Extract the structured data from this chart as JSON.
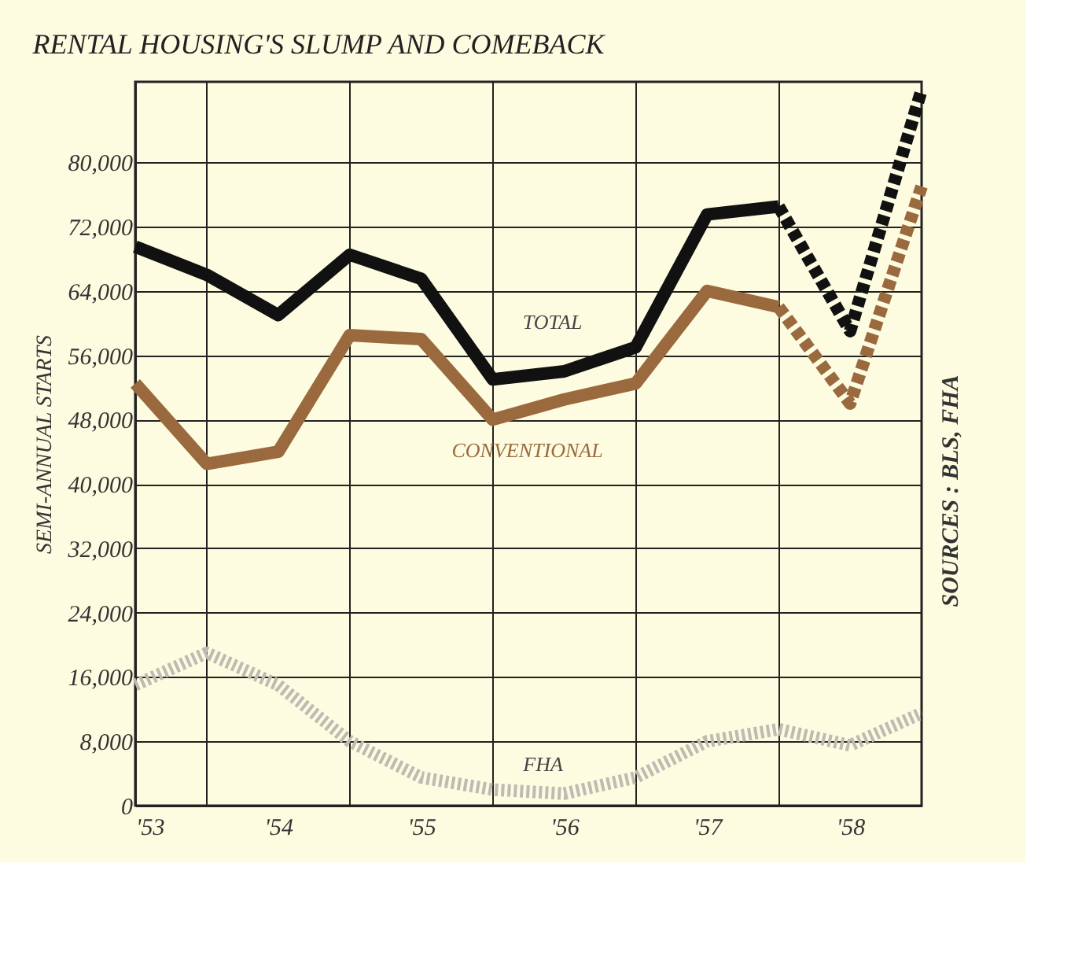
{
  "chart_data": {
    "type": "line",
    "title": "RENTAL HOUSING'S SLUMP AND COMEBACK",
    "ylabel": "SEMI-ANNUAL STARTS",
    "annotations": [
      "SOURCES : BLS, FHA"
    ],
    "x": [
      1953.0,
      1953.5,
      1954.0,
      1954.5,
      1955.0,
      1955.5,
      1956.0,
      1956.5,
      1957.0,
      1957.5,
      1958.0,
      1958.5
    ],
    "series": [
      {
        "name": "TOTAL",
        "color": "#111111",
        "line_style": "solid",
        "x": [
          1953.0,
          1953.5,
          1954.0,
          1954.5,
          1955.0,
          1955.5,
          1956.0,
          1956.5,
          1957.0,
          1957.5
        ],
        "values": [
          69500,
          66000,
          61000,
          68500,
          65500,
          53000,
          54000,
          57000,
          73500,
          74500
        ]
      },
      {
        "color": "#111111",
        "line_style": "dashed",
        "x": [
          1957.5,
          1958.0,
          1958.5
        ],
        "values": [
          74500,
          59000,
          89000
        ]
      },
      {
        "name": "CONVENTIONAL",
        "color": "#9a6a3e",
        "line_style": "solid",
        "x": [
          1953.0,
          1953.5,
          1954.0,
          1954.5,
          1955.0,
          1955.5,
          1956.0,
          1956.5,
          1957.0,
          1957.5
        ],
        "values": [
          52500,
          42500,
          44000,
          58500,
          58000,
          48000,
          50500,
          52500,
          64000,
          62000
        ]
      },
      {
        "color": "#9a6a3e",
        "line_style": "dashed",
        "x": [
          1957.5,
          1958.0,
          1958.5
        ],
        "values": [
          62000,
          50000,
          77000
        ]
      },
      {
        "name": "FHA",
        "color": "#bdbcb2",
        "line_style": "dotted",
        "values": [
          15000,
          19000,
          15000,
          8000,
          3500,
          2000,
          1500,
          3500,
          8000,
          9500,
          7500,
          11500
        ]
      }
    ],
    "xlim": [
      1953.0,
      1958.5
    ],
    "xticks": [
      {
        "value": 1953,
        "label": "'53"
      },
      {
        "value": 1954,
        "label": "'54"
      },
      {
        "value": 1955,
        "label": "'55"
      },
      {
        "value": 1956,
        "label": "'56"
      },
      {
        "value": 1957,
        "label": "'57"
      },
      {
        "value": 1958,
        "label": "'58"
      },
      {
        "value": 1953.5,
        "label": null
      },
      {
        "value": 1954.5,
        "label": null
      },
      {
        "value": 1955.5,
        "label": null
      },
      {
        "value": 1956.5,
        "label": null
      },
      {
        "value": 1957.5,
        "label": null
      }
    ],
    "ylim": [
      0,
      90000
    ],
    "yticks": [
      0,
      {
        "value": 8000,
        "label": "8,000"
      },
      {
        "value": 16000,
        "label": "16,000"
      },
      {
        "value": 24000,
        "label": "24,000"
      },
      {
        "value": 32000,
        "label": "32,000"
      },
      {
        "value": 40000,
        "label": "40,000"
      },
      {
        "value": 48000,
        "label": "48,000"
      },
      {
        "value": 56000,
        "label": "56,000"
      },
      {
        "value": 64000,
        "label": "64,000"
      },
      {
        "value": 72000,
        "label": "72,000"
      },
      {
        "value": 80000,
        "label": "80,000"
      }
    ],
    "grid": true
  }
}
